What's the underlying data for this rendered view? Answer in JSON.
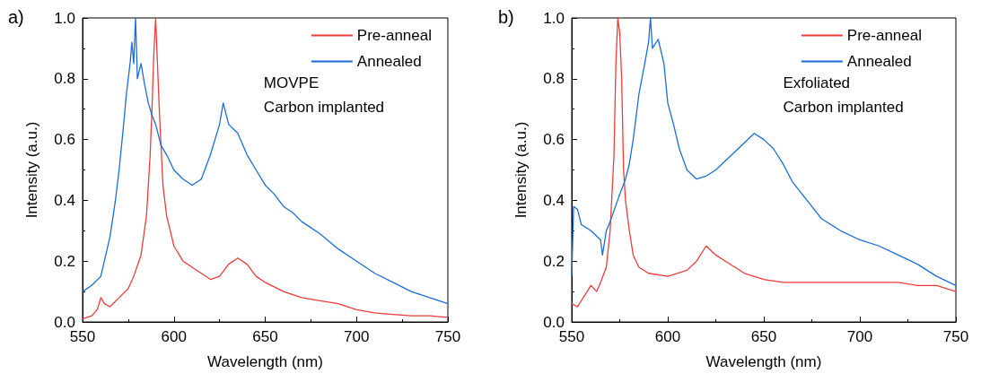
{
  "chart_data": [
    {
      "type": "line",
      "title": "a)",
      "xlabel": "Wavelength (nm)",
      "ylabel": "Intensity (a.u.)",
      "xlim": [
        550,
        750
      ],
      "xticks": [
        550,
        600,
        650,
        700,
        750
      ],
      "ylim": [
        0,
        1
      ],
      "yticks": [
        {
          "value": 0,
          "label": "0.0"
        },
        {
          "value": 0.2,
          "label": "0.2"
        },
        {
          "value": 0.4,
          "label": "0.4"
        },
        {
          "value": 0.6,
          "label": "0.6"
        },
        {
          "value": 0.8,
          "label": "0.8"
        },
        {
          "value": 1,
          "label": "1.0"
        }
      ],
      "legend": "top right",
      "grid": false,
      "marker": "none",
      "line_style": "solid",
      "annotations": [
        "MOVPE",
        "Carbon implanted"
      ],
      "series": [
        {
          "name": "Pre-anneal",
          "color": "#ee3b3b",
          "x": [
            550,
            555,
            558,
            560,
            562,
            565,
            570,
            575,
            578,
            582,
            585,
            587,
            588,
            589,
            590,
            591,
            592,
            594,
            596,
            598,
            600,
            605,
            610,
            615,
            620,
            625,
            630,
            635,
            640,
            645,
            650,
            660,
            670,
            680,
            690,
            700,
            710,
            720,
            730,
            740,
            750
          ],
          "values": [
            0.01,
            0.02,
            0.04,
            0.08,
            0.06,
            0.05,
            0.08,
            0.11,
            0.15,
            0.22,
            0.35,
            0.55,
            0.7,
            0.88,
            1.0,
            0.85,
            0.7,
            0.45,
            0.35,
            0.3,
            0.25,
            0.2,
            0.18,
            0.16,
            0.14,
            0.15,
            0.19,
            0.21,
            0.19,
            0.15,
            0.13,
            0.1,
            0.08,
            0.07,
            0.06,
            0.04,
            0.03,
            0.025,
            0.02,
            0.02,
            0.015
          ]
        },
        {
          "name": "Annealed",
          "color": "#1a6ddb",
          "x": [
            550,
            555,
            560,
            565,
            568,
            570,
            572,
            574,
            576,
            577,
            578,
            579,
            580,
            582,
            584,
            586,
            588,
            590,
            593,
            596,
            600,
            605,
            610,
            615,
            620,
            625,
            627,
            630,
            635,
            640,
            645,
            650,
            655,
            660,
            665,
            670,
            675,
            680,
            690,
            700,
            710,
            720,
            730,
            740,
            750
          ],
          "values": [
            0.1,
            0.12,
            0.15,
            0.28,
            0.4,
            0.5,
            0.62,
            0.75,
            0.85,
            0.92,
            0.85,
            1.0,
            0.8,
            0.85,
            0.78,
            0.72,
            0.68,
            0.65,
            0.58,
            0.55,
            0.5,
            0.47,
            0.45,
            0.47,
            0.55,
            0.65,
            0.72,
            0.65,
            0.62,
            0.55,
            0.5,
            0.45,
            0.42,
            0.38,
            0.36,
            0.33,
            0.31,
            0.29,
            0.24,
            0.2,
            0.16,
            0.13,
            0.1,
            0.08,
            0.06
          ]
        }
      ]
    },
    {
      "type": "line",
      "title": "b)",
      "xlabel": "Wavelength (nm)",
      "ylabel": "Intensity (a.u.)",
      "xlim": [
        550,
        750
      ],
      "xticks": [
        550,
        600,
        650,
        700,
        750
      ],
      "ylim": [
        0,
        1
      ],
      "yticks": [
        {
          "value": 0,
          "label": "0.0"
        },
        {
          "value": 0.2,
          "label": "0.2"
        },
        {
          "value": 0.4,
          "label": "0.4"
        },
        {
          "value": 0.6,
          "label": "0.6"
        },
        {
          "value": 0.8,
          "label": "0.8"
        },
        {
          "value": 1,
          "label": "1.0"
        }
      ],
      "legend": "top right",
      "grid": false,
      "marker": "none",
      "line_style": "solid",
      "annotations": [
        "Exfoliated",
        "Carbon implanted"
      ],
      "series": [
        {
          "name": "Pre-anneal",
          "color": "#ee3b3b",
          "x": [
            550,
            553,
            555,
            558,
            560,
            563,
            565,
            568,
            570,
            572,
            573,
            574,
            575,
            576,
            577,
            578,
            580,
            582,
            585,
            590,
            600,
            610,
            615,
            620,
            625,
            630,
            635,
            640,
            650,
            660,
            670,
            680,
            690,
            700,
            710,
            720,
            730,
            740,
            750
          ],
          "values": [
            0.06,
            0.05,
            0.07,
            0.1,
            0.12,
            0.1,
            0.13,
            0.18,
            0.3,
            0.55,
            0.85,
            1.0,
            0.95,
            0.8,
            0.5,
            0.4,
            0.3,
            0.22,
            0.18,
            0.16,
            0.15,
            0.17,
            0.2,
            0.25,
            0.22,
            0.2,
            0.18,
            0.16,
            0.14,
            0.13,
            0.13,
            0.13,
            0.13,
            0.13,
            0.13,
            0.13,
            0.12,
            0.12,
            0.1
          ]
        },
        {
          "name": "Annealed",
          "color": "#1a6ddb",
          "x": [
            550,
            551,
            553,
            555,
            560,
            565,
            566,
            568,
            570,
            575,
            578,
            580,
            582,
            585,
            588,
            590,
            591,
            592,
            595,
            598,
            600,
            603,
            606,
            610,
            615,
            620,
            625,
            630,
            635,
            640,
            645,
            650,
            655,
            660,
            665,
            670,
            675,
            680,
            690,
            700,
            710,
            720,
            730,
            740,
            750
          ],
          "values": [
            0.15,
            0.38,
            0.37,
            0.32,
            0.3,
            0.27,
            0.22,
            0.3,
            0.33,
            0.42,
            0.47,
            0.52,
            0.6,
            0.75,
            0.85,
            0.92,
            1.0,
            0.9,
            0.93,
            0.85,
            0.72,
            0.65,
            0.57,
            0.5,
            0.47,
            0.48,
            0.5,
            0.53,
            0.56,
            0.59,
            0.62,
            0.6,
            0.57,
            0.52,
            0.46,
            0.42,
            0.38,
            0.34,
            0.3,
            0.27,
            0.25,
            0.22,
            0.19,
            0.15,
            0.12
          ]
        }
      ]
    }
  ]
}
